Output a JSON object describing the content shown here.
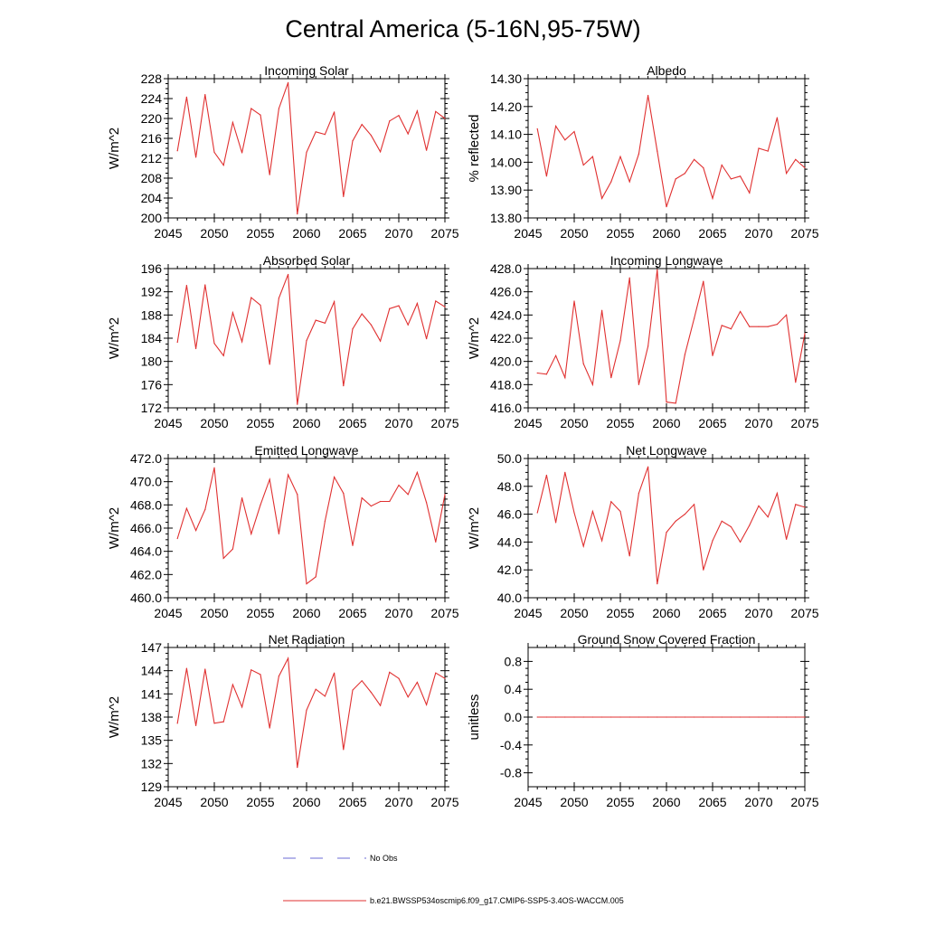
{
  "title": "Central America (5-16N,95-75W)",
  "legend": [
    {
      "label": "No Obs",
      "color": "#6b6bd6",
      "style": "dashed"
    },
    {
      "label": "b.e21.BWSSP534oscmip6.f09_g17.CMIP6-SSP5-3.4OS-WACCM.005",
      "color": "#e03030",
      "style": "solid"
    }
  ],
  "series_color": "#e03030",
  "chart_data": [
    {
      "type": "line",
      "title": "Incoming Solar",
      "ylabel": "W/m^2",
      "xlim": [
        2045,
        2075
      ],
      "ylim": [
        200,
        228
      ],
      "xticks": [
        2045,
        2050,
        2055,
        2060,
        2065,
        2070,
        2075
      ],
      "xtick_labels": [
        "2045",
        "2050",
        "2055",
        "2060",
        "2065",
        "2070",
        "2075"
      ],
      "yticks": [
        200,
        204,
        208,
        212,
        216,
        220,
        224,
        228
      ],
      "ytick_labels": [
        "200",
        "204",
        "208",
        "212",
        "216",
        "220",
        "224",
        "228"
      ],
      "x": [
        2046,
        2047,
        2048,
        2049,
        2050,
        2051,
        2052,
        2053,
        2054,
        2055,
        2056,
        2057,
        2058,
        2059,
        2060,
        2061,
        2062,
        2063,
        2064,
        2065,
        2066,
        2067,
        2068,
        2069,
        2070,
        2071,
        2072,
        2073,
        2074,
        2075
      ],
      "values": [
        213.5,
        224.3,
        212.2,
        224.8,
        213.2,
        210.6,
        219.2,
        213.1,
        222.0,
        220.7,
        208.7,
        222.0,
        227.2,
        200.8,
        213.2,
        217.3,
        216.8,
        221.3,
        204.3,
        215.5,
        218.8,
        216.6,
        213.3,
        219.5,
        220.6,
        216.9,
        221.5,
        213.6,
        221.4,
        220.0
      ]
    },
    {
      "type": "line",
      "title": "Albedo",
      "ylabel": "% reflected",
      "xlim": [
        2045,
        2075
      ],
      "ylim": [
        13.8,
        14.3
      ],
      "xticks": [
        2045,
        2050,
        2055,
        2060,
        2065,
        2070,
        2075
      ],
      "xtick_labels": [
        "2045",
        "2050",
        "2055",
        "2060",
        "2065",
        "2070",
        "2075"
      ],
      "yticks": [
        13.8,
        13.9,
        14.0,
        14.1,
        14.2,
        14.3
      ],
      "ytick_labels": [
        "13.80",
        "13.90",
        "14.00",
        "14.10",
        "14.20",
        "14.30"
      ],
      "x": [
        2046,
        2047,
        2048,
        2049,
        2050,
        2051,
        2052,
        2053,
        2054,
        2055,
        2056,
        2057,
        2058,
        2059,
        2060,
        2061,
        2062,
        2063,
        2064,
        2065,
        2066,
        2067,
        2068,
        2069,
        2070,
        2071,
        2072,
        2073,
        2074,
        2075
      ],
      "values": [
        14.12,
        13.95,
        14.13,
        14.08,
        14.11,
        13.99,
        14.02,
        13.87,
        13.93,
        14.02,
        13.93,
        14.03,
        14.24,
        14.04,
        13.84,
        13.94,
        13.96,
        14.01,
        13.98,
        13.87,
        13.99,
        13.94,
        13.95,
        13.89,
        14.05,
        14.04,
        14.16,
        13.96,
        14.01,
        13.98
      ]
    },
    {
      "type": "line",
      "title": "Absorbed Solar",
      "ylabel": "W/m^2",
      "xlim": [
        2045,
        2075
      ],
      "ylim": [
        172,
        196
      ],
      "xticks": [
        2045,
        2050,
        2055,
        2060,
        2065,
        2070,
        2075
      ],
      "xtick_labels": [
        "2045",
        "2050",
        "2055",
        "2060",
        "2065",
        "2070",
        "2075"
      ],
      "yticks": [
        172,
        176,
        180,
        184,
        188,
        192,
        196
      ],
      "ytick_labels": [
        "172",
        "176",
        "180",
        "184",
        "188",
        "192",
        "196"
      ],
      "x": [
        2046,
        2047,
        2048,
        2049,
        2050,
        2051,
        2052,
        2053,
        2054,
        2055,
        2056,
        2057,
        2058,
        2059,
        2060,
        2061,
        2062,
        2063,
        2064,
        2065,
        2066,
        2067,
        2068,
        2069,
        2070,
        2071,
        2072,
        2073,
        2074,
        2075
      ],
      "values": [
        183.3,
        193.1,
        182.2,
        193.2,
        183.1,
        181.0,
        188.4,
        183.4,
        191.0,
        189.7,
        179.5,
        190.9,
        195.0,
        172.6,
        183.6,
        187.1,
        186.6,
        190.3,
        175.8,
        185.6,
        188.2,
        186.3,
        183.5,
        189.1,
        189.6,
        186.3,
        190.0,
        183.9,
        190.4,
        189.4
      ]
    },
    {
      "type": "line",
      "title": "Incoming Longwave",
      "ylabel": "W/m^2",
      "xlim": [
        2045,
        2075
      ],
      "ylim": [
        416.0,
        428.0
      ],
      "xticks": [
        2045,
        2050,
        2055,
        2060,
        2065,
        2070,
        2075
      ],
      "xtick_labels": [
        "2045",
        "2050",
        "2055",
        "2060",
        "2065",
        "2070",
        "2075"
      ],
      "yticks": [
        416.0,
        418.0,
        420.0,
        422.0,
        424.0,
        426.0,
        428.0
      ],
      "ytick_labels": [
        "416.0",
        "418.0",
        "420.0",
        "422.0",
        "424.0",
        "426.0",
        "428.0"
      ],
      "x": [
        2046,
        2047,
        2048,
        2049,
        2050,
        2051,
        2052,
        2053,
        2054,
        2055,
        2056,
        2057,
        2058,
        2059,
        2060,
        2061,
        2062,
        2063,
        2064,
        2065,
        2066,
        2067,
        2068,
        2069,
        2070,
        2071,
        2072,
        2073,
        2074,
        2075
      ],
      "values": [
        419.0,
        418.9,
        420.5,
        418.6,
        425.2,
        419.8,
        418.0,
        424.4,
        418.6,
        421.8,
        427.2,
        418.0,
        421.3,
        427.9,
        416.5,
        416.4,
        420.6,
        423.7,
        426.9,
        420.5,
        423.1,
        422.8,
        424.3,
        423.0,
        423.0,
        423.0,
        423.2,
        424.0,
        418.2,
        422.4
      ]
    },
    {
      "type": "line",
      "title": "Emitted Longwave",
      "ylabel": "W/m^2",
      "xlim": [
        2045,
        2075
      ],
      "ylim": [
        460.0,
        472.0
      ],
      "xticks": [
        2045,
        2050,
        2055,
        2060,
        2065,
        2070,
        2075
      ],
      "xtick_labels": [
        "2045",
        "2050",
        "2055",
        "2060",
        "2065",
        "2070",
        "2075"
      ],
      "yticks": [
        460.0,
        462.0,
        464.0,
        466.0,
        468.0,
        470.0,
        472.0
      ],
      "ytick_labels": [
        "460.0",
        "462.0",
        "464.0",
        "466.0",
        "468.0",
        "470.0",
        "472.0"
      ],
      "x": [
        2046,
        2047,
        2048,
        2049,
        2050,
        2051,
        2052,
        2053,
        2054,
        2055,
        2056,
        2057,
        2058,
        2059,
        2060,
        2061,
        2062,
        2063,
        2064,
        2065,
        2066,
        2067,
        2068,
        2069,
        2070,
        2071,
        2072,
        2073,
        2074,
        2075
      ],
      "values": [
        465.1,
        467.7,
        465.8,
        467.6,
        471.2,
        463.4,
        464.2,
        468.6,
        465.5,
        468.0,
        470.2,
        465.5,
        470.6,
        468.9,
        461.2,
        461.8,
        466.6,
        470.4,
        469.0,
        464.5,
        468.6,
        467.9,
        468.3,
        468.3,
        469.7,
        468.9,
        470.8,
        468.2,
        464.8,
        468.9
      ]
    },
    {
      "type": "line",
      "title": "Net Longwave",
      "ylabel": "W/m^2",
      "xlim": [
        2045,
        2075
      ],
      "ylim": [
        40.0,
        50.0
      ],
      "xticks": [
        2045,
        2050,
        2055,
        2060,
        2065,
        2070,
        2075
      ],
      "xtick_labels": [
        "2045",
        "2050",
        "2055",
        "2060",
        "2065",
        "2070",
        "2075"
      ],
      "yticks": [
        40.0,
        42.0,
        44.0,
        46.0,
        48.0,
        50.0
      ],
      "ytick_labels": [
        "40.0",
        "42.0",
        "44.0",
        "46.0",
        "48.0",
        "50.0"
      ],
      "x": [
        2046,
        2047,
        2048,
        2049,
        2050,
        2051,
        2052,
        2053,
        2054,
        2055,
        2056,
        2057,
        2058,
        2059,
        2060,
        2061,
        2062,
        2063,
        2064,
        2065,
        2066,
        2067,
        2068,
        2069,
        2070,
        2071,
        2072,
        2073,
        2074,
        2075
      ],
      "values": [
        46.1,
        48.8,
        45.4,
        49.0,
        46.1,
        43.7,
        46.2,
        44.1,
        46.9,
        46.2,
        43.0,
        47.5,
        49.4,
        41.0,
        44.7,
        45.5,
        46.0,
        46.7,
        42.0,
        44.1,
        45.5,
        45.1,
        44.0,
        45.2,
        46.6,
        45.8,
        47.5,
        44.2,
        46.7,
        46.5
      ]
    },
    {
      "type": "line",
      "title": "Net Radiation",
      "ylabel": "W/m^2",
      "xlim": [
        2045,
        2075
      ],
      "ylim": [
        129,
        147
      ],
      "xticks": [
        2045,
        2050,
        2055,
        2060,
        2065,
        2070,
        2075
      ],
      "xtick_labels": [
        "2045",
        "2050",
        "2055",
        "2060",
        "2065",
        "2070",
        "2075"
      ],
      "yticks": [
        129,
        132,
        135,
        138,
        141,
        144,
        147
      ],
      "ytick_labels": [
        "129",
        "132",
        "135",
        "138",
        "141",
        "144",
        "147"
      ],
      "x": [
        2046,
        2047,
        2048,
        2049,
        2050,
        2051,
        2052,
        2053,
        2054,
        2055,
        2056,
        2057,
        2058,
        2059,
        2060,
        2061,
        2062,
        2063,
        2064,
        2065,
        2066,
        2067,
        2068,
        2069,
        2070,
        2071,
        2072,
        2073,
        2074,
        2075
      ],
      "values": [
        137.2,
        144.3,
        136.9,
        144.2,
        137.2,
        137.4,
        142.2,
        139.3,
        144.1,
        143.5,
        136.6,
        143.3,
        145.6,
        131.5,
        138.9,
        141.6,
        140.7,
        143.7,
        133.8,
        141.5,
        142.7,
        141.2,
        139.5,
        143.8,
        143.0,
        140.6,
        142.5,
        139.6,
        143.7,
        143.0
      ]
    },
    {
      "type": "line",
      "title": "Ground Snow Covered Fraction",
      "ylabel": "unitless",
      "xlim": [
        2045,
        2075
      ],
      "ylim": [
        -1.0,
        1.0
      ],
      "xticks": [
        2045,
        2050,
        2055,
        2060,
        2065,
        2070,
        2075
      ],
      "xtick_labels": [
        "2045",
        "2050",
        "2055",
        "2060",
        "2065",
        "2070",
        "2075"
      ],
      "yticks": [
        -0.8,
        -0.4,
        0.0,
        0.4,
        0.8
      ],
      "ytick_labels": [
        "-0.8",
        "-0.4",
        "0.0",
        "0.4",
        "0.8"
      ],
      "x": [
        2046,
        2047,
        2048,
        2049,
        2050,
        2051,
        2052,
        2053,
        2054,
        2055,
        2056,
        2057,
        2058,
        2059,
        2060,
        2061,
        2062,
        2063,
        2064,
        2065,
        2066,
        2067,
        2068,
        2069,
        2070,
        2071,
        2072,
        2073,
        2074,
        2075
      ],
      "values": [
        0,
        0,
        0,
        0,
        0,
        0,
        0,
        0,
        0,
        0,
        0,
        0,
        0,
        0,
        0,
        0,
        0,
        0,
        0,
        0,
        0,
        0,
        0,
        0,
        0,
        0,
        0,
        0,
        0,
        0
      ]
    }
  ]
}
